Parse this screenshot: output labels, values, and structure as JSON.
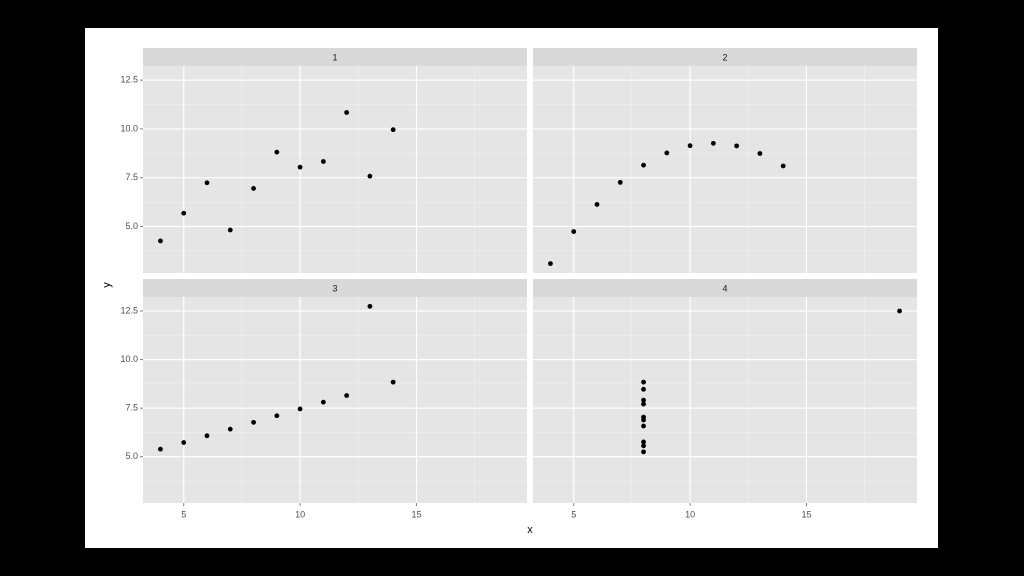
{
  "axis_labels": {
    "x": "x",
    "y": "y"
  },
  "chart_data": [
    {
      "type": "scatter",
      "title": "1",
      "color": "#000000",
      "grid": true,
      "x": [
        10,
        8,
        13,
        9,
        11,
        14,
        6,
        4,
        12,
        7,
        5
      ],
      "y": [
        8.04,
        6.95,
        7.58,
        8.81,
        8.33,
        9.96,
        7.24,
        4.26,
        10.84,
        4.82,
        5.68
      ],
      "xlim": [
        3.25,
        19.75
      ],
      "ylim": [
        2.618,
        13.222
      ],
      "xticks": [
        5,
        10,
        15
      ],
      "yticks": [
        {
          "value": 5,
          "label": "5.0"
        },
        7.5,
        {
          "value": 10,
          "label": "10.0"
        },
        12.5
      ]
    },
    {
      "type": "scatter",
      "title": "2",
      "color": "#000000",
      "grid": true,
      "x": [
        10,
        8,
        13,
        9,
        11,
        14,
        6,
        4,
        12,
        7,
        5
      ],
      "y": [
        9.14,
        8.14,
        8.74,
        8.77,
        9.26,
        8.1,
        6.13,
        3.1,
        9.13,
        7.26,
        4.74
      ],
      "xlim": [
        3.25,
        19.75
      ],
      "ylim": [
        2.618,
        13.222
      ],
      "xticks": [
        5,
        10,
        15
      ],
      "yticks": [
        {
          "value": 5,
          "label": "5.0"
        },
        7.5,
        {
          "value": 10,
          "label": "10.0"
        },
        12.5
      ]
    },
    {
      "type": "scatter",
      "title": "3",
      "color": "#000000",
      "grid": true,
      "x": [
        10,
        8,
        13,
        9,
        11,
        14,
        6,
        4,
        12,
        7,
        5
      ],
      "y": [
        7.46,
        6.77,
        12.74,
        7.11,
        7.81,
        8.84,
        6.08,
        5.39,
        8.15,
        6.42,
        5.73
      ],
      "xlim": [
        3.25,
        19.75
      ],
      "ylim": [
        2.618,
        13.222
      ],
      "xticks": [
        5,
        10,
        15
      ],
      "yticks": [
        {
          "value": 5,
          "label": "5.0"
        },
        7.5,
        {
          "value": 10,
          "label": "10.0"
        },
        12.5
      ]
    },
    {
      "type": "scatter",
      "title": "4",
      "color": "#000000",
      "grid": true,
      "x": [
        8,
        8,
        8,
        8,
        8,
        8,
        8,
        19,
        8,
        8,
        8
      ],
      "y": [
        6.58,
        5.76,
        7.71,
        8.84,
        8.47,
        7.04,
        5.25,
        12.5,
        5.56,
        7.91,
        6.89
      ],
      "xlim": [
        3.25,
        19.75
      ],
      "ylim": [
        2.618,
        13.222
      ],
      "xticks": [
        5,
        10,
        15
      ],
      "yticks": [
        {
          "value": 5,
          "label": "5.0"
        },
        7.5,
        {
          "value": 10,
          "label": "10.0"
        },
        12.5
      ]
    }
  ]
}
